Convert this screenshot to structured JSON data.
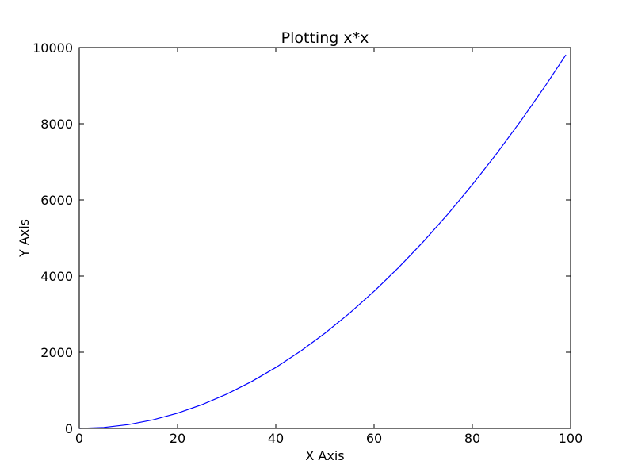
{
  "chart_data": {
    "type": "line",
    "title": "Plotting x*x",
    "xlabel": "X Axis",
    "ylabel": "Y Axis",
    "xlim": [
      0,
      100
    ],
    "ylim": [
      0,
      10000
    ],
    "grid": false,
    "x_ticks": [
      0,
      20,
      40,
      60,
      80,
      100
    ],
    "y_ticks": [
      0,
      2000,
      4000,
      6000,
      8000,
      10000
    ],
    "x_tick_labels": [
      "0",
      "20",
      "40",
      "60",
      "80",
      "100"
    ],
    "y_tick_labels": [
      "0",
      "2000",
      "4000",
      "6000",
      "8000",
      "10000"
    ],
    "series": [
      {
        "color": "#0000ff",
        "x": [
          0,
          5,
          10,
          15,
          20,
          25,
          30,
          35,
          40,
          45,
          50,
          55,
          60,
          65,
          70,
          75,
          80,
          85,
          90,
          95,
          99
        ],
        "y": [
          0,
          25,
          100,
          225,
          400,
          625,
          900,
          1225,
          1600,
          2025,
          2500,
          3025,
          3600,
          4225,
          4900,
          5625,
          6400,
          7225,
          8100,
          9025,
          9801
        ]
      }
    ]
  }
}
